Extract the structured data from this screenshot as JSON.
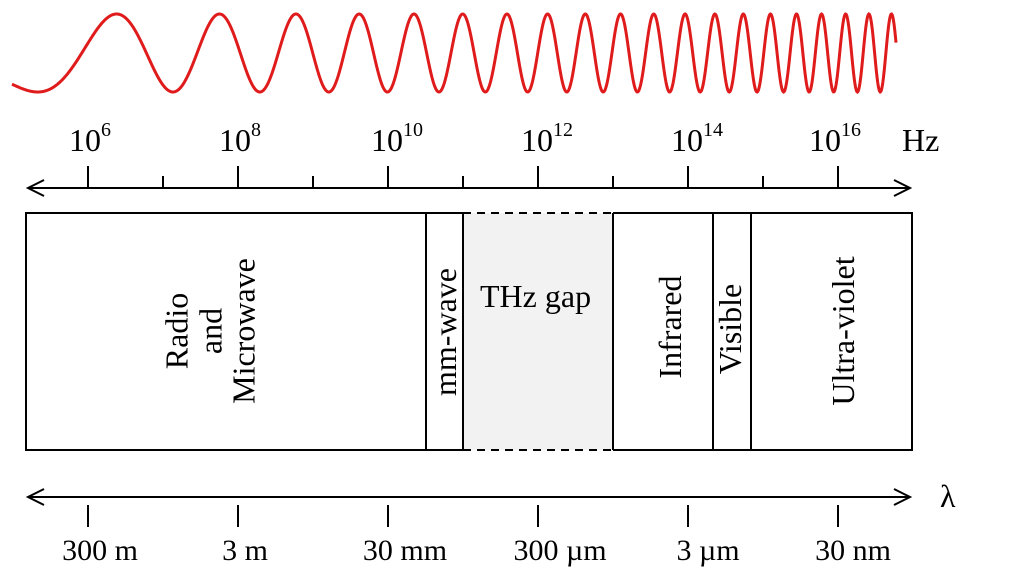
{
  "frequency_axis": {
    "unit": "Hz",
    "ticks": [
      {
        "base": "10",
        "exp": "6"
      },
      {
        "base": "10",
        "exp": "8"
      },
      {
        "base": "10",
        "exp": "10"
      },
      {
        "base": "10",
        "exp": "12"
      },
      {
        "base": "10",
        "exp": "14"
      },
      {
        "base": "10",
        "exp": "16"
      }
    ]
  },
  "wavelength_axis": {
    "unit": "λ",
    "ticks": [
      "300 m",
      "3 m",
      "30 mm",
      "300 µm",
      "3 µm",
      "30 nm"
    ]
  },
  "bands": {
    "radio": [
      "Radio",
      "and",
      "Microwave"
    ],
    "mmwave": "mm-wave",
    "thz": "THz gap",
    "infrared": "Infrared",
    "visible": "Visible",
    "uv": "Ultra-violet"
  },
  "colors": {
    "wave": "#e01b1b",
    "thz_fill": "#f2f2f2",
    "line": "#000000"
  }
}
